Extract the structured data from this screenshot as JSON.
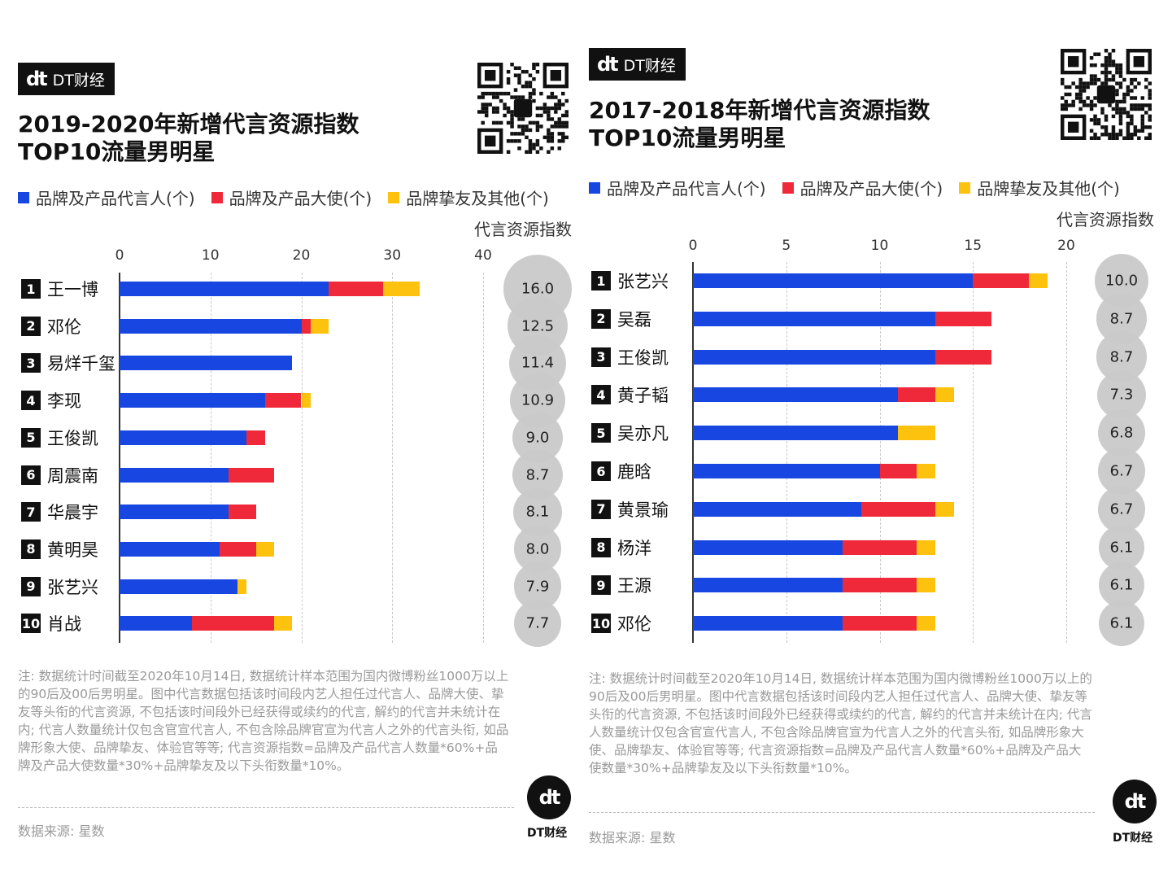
{
  "colors": {
    "blue": "#1747e0",
    "red": "#f0293a",
    "yellow": "#fcc20d",
    "bubble": "#c9c9c9"
  },
  "brand": {
    "mark": "dt",
    "name": "DT财经"
  },
  "legend": [
    "品牌及产品代言人(个)",
    "品牌及产品大使(个)",
    "品牌挚友及其他(个)"
  ],
  "index_label": "代言资源指数",
  "note": "注: 数据统计时间截至2020年10月14日, 数据统计样本范围为国内微博粉丝1000万以上的90后及00后男明星。图中代言数据包括该时间段内艺人担任过代言人、品牌大使、挚友等头衔的代言资源, 不包括该时间段外已经获得或续约的代言, 解约的代言并未统计在内; 代言人数量统计仅包含官宣代言人, 不包含除品牌官宣为代言人之外的代言头衔, 如品牌形象大使、品牌挚友、体验官等等; 代言资源指数=品牌及产品代言人数量*60%+品牌及产品大使数量*30%+品牌挚友及以下头衔数量*10%。",
  "source": "数据来源: 星数",
  "chart_data": [
    {
      "type": "bar",
      "orientation": "horizontal",
      "stacked": true,
      "title_line1": "2019-2020年新增代言资源指数",
      "title_line2": "TOP10流量男明星",
      "xlim": [
        0,
        40
      ],
      "xticks": [
        0,
        10,
        20,
        30,
        40
      ],
      "categories": [
        "王一博",
        "邓伦",
        "易烊千玺",
        "李现",
        "王俊凯",
        "周震南",
        "华晨宇",
        "黄明昊",
        "张艺兴",
        "肖战"
      ],
      "series": [
        {
          "name": "品牌及产品代言人(个)",
          "values": [
            23,
            20,
            19,
            16,
            14,
            12,
            12,
            11,
            13,
            8
          ]
        },
        {
          "name": "品牌及产品大使(个)",
          "values": [
            6,
            1,
            0,
            4,
            2,
            5,
            3,
            4,
            0,
            9
          ]
        },
        {
          "name": "品牌挚友及其他(个)",
          "values": [
            4,
            2,
            0,
            1,
            0,
            0,
            0,
            2,
            1,
            2
          ]
        }
      ],
      "index": [
        "16.0",
        "12.5",
        "11.4",
        "10.9",
        "9.0",
        "8.7",
        "8.1",
        "8.0",
        "7.9",
        "7.7"
      ]
    },
    {
      "type": "bar",
      "orientation": "horizontal",
      "stacked": true,
      "title_line1": "2017-2018年新增代言资源指数",
      "title_line2": "TOP10流量男明星",
      "xlim": [
        0,
        20
      ],
      "xticks": [
        0,
        5,
        10,
        15,
        20
      ],
      "categories": [
        "张艺兴",
        "吴磊",
        "王俊凯",
        "黄子韬",
        "吴亦凡",
        "鹿晗",
        "黄景瑜",
        "杨洋",
        "王源",
        "邓伦"
      ],
      "series": [
        {
          "name": "品牌及产品代言人(个)",
          "values": [
            15,
            13,
            13,
            11,
            11,
            10,
            9,
            8,
            8,
            8
          ]
        },
        {
          "name": "品牌及产品大使(个)",
          "values": [
            3,
            3,
            3,
            2,
            0,
            2,
            4,
            4,
            4,
            4
          ]
        },
        {
          "name": "品牌挚友及其他(个)",
          "values": [
            1,
            0,
            0,
            1,
            2,
            1,
            1,
            1,
            1,
            1
          ]
        }
      ],
      "index": [
        "10.0",
        "8.7",
        "8.7",
        "7.3",
        "6.8",
        "6.7",
        "6.7",
        "6.1",
        "6.1",
        "6.1"
      ]
    }
  ]
}
